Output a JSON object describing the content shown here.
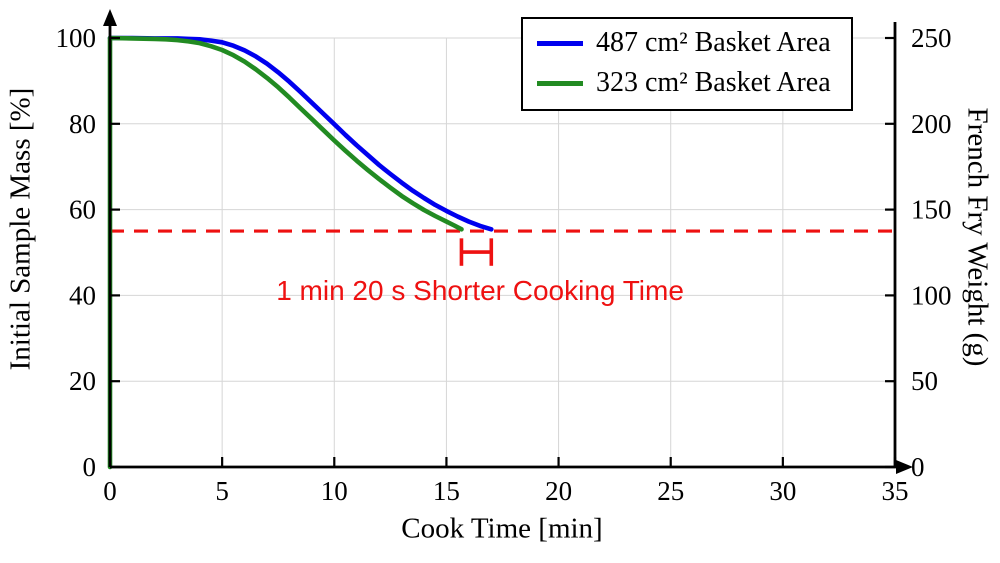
{
  "chart_data": {
    "type": "line",
    "title": "",
    "xlabel": "Cook Time [min]",
    "ylabel_left": "Initial Sample Mass [%]",
    "ylabel_right": "French Fry Weight (g)",
    "xlim": [
      0,
      35
    ],
    "ylim_left": [
      0,
      100
    ],
    "ylim_right": [
      0,
      250
    ],
    "x_ticks": [
      0,
      5,
      10,
      15,
      20,
      25,
      30,
      35
    ],
    "y_ticks_left": [
      0,
      20,
      40,
      60,
      80,
      100
    ],
    "y_ticks_right": [
      0,
      50,
      100,
      150,
      200,
      250
    ],
    "grid": true,
    "grid_color": "#d6d6d6",
    "legend_position": "top-right",
    "series": [
      {
        "name": "487 cm² Basket Area",
        "color": "#0000ee",
        "points": [
          [
            0,
            100
          ],
          [
            1,
            100
          ],
          [
            2,
            99.9
          ],
          [
            3,
            99.9
          ],
          [
            3.5,
            99.8
          ],
          [
            4,
            99.7
          ],
          [
            4.5,
            99.4
          ],
          [
            5,
            99
          ],
          [
            5.5,
            98.2
          ],
          [
            6,
            97.1
          ],
          [
            6.5,
            95.7
          ],
          [
            7,
            94
          ],
          [
            7.5,
            92
          ],
          [
            8,
            89.8
          ],
          [
            8.5,
            87.4
          ],
          [
            9,
            84.9
          ],
          [
            9.5,
            82.4
          ],
          [
            10,
            79.9
          ],
          [
            10.5,
            77.4
          ],
          [
            11,
            75
          ],
          [
            11.5,
            72.7
          ],
          [
            12,
            70.4
          ],
          [
            12.5,
            68.3
          ],
          [
            13,
            66.3
          ],
          [
            13.5,
            64.4
          ],
          [
            14,
            62.7
          ],
          [
            14.5,
            61.1
          ],
          [
            15,
            59.7
          ],
          [
            15.5,
            58.4
          ],
          [
            16,
            57.2
          ],
          [
            16.5,
            56.2
          ],
          [
            17,
            55.4
          ]
        ]
      },
      {
        "name": "323 cm² Basket Area",
        "color": "#228b22",
        "points": [
          [
            0,
            0
          ],
          [
            0,
            100
          ],
          [
            1,
            99.9
          ],
          [
            2,
            99.8
          ],
          [
            2.5,
            99.7
          ],
          [
            3,
            99.5
          ],
          [
            3.5,
            99.2
          ],
          [
            4,
            98.8
          ],
          [
            4.5,
            98.1
          ],
          [
            5,
            97.2
          ],
          [
            5.5,
            96
          ],
          [
            6,
            94.5
          ],
          [
            6.5,
            92.7
          ],
          [
            7,
            90.7
          ],
          [
            7.5,
            88.5
          ],
          [
            8,
            86.1
          ],
          [
            8.5,
            83.6
          ],
          [
            9,
            81.1
          ],
          [
            9.5,
            78.6
          ],
          [
            10,
            76.1
          ],
          [
            10.5,
            73.7
          ],
          [
            11,
            71.4
          ],
          [
            11.5,
            69.2
          ],
          [
            12,
            67.1
          ],
          [
            12.5,
            65.1
          ],
          [
            13,
            63.2
          ],
          [
            13.5,
            61.5
          ],
          [
            14,
            59.9
          ],
          [
            14.5,
            58.5
          ],
          [
            15,
            57.2
          ],
          [
            15.35,
            56.3
          ],
          [
            15.67,
            55.4
          ]
        ]
      }
    ],
    "reference_line": {
      "y": 55,
      "color": "#ee1111",
      "style": "dashed"
    },
    "bracket": {
      "x1": 15.67,
      "x2": 17.0,
      "y": 50.1,
      "cap_half": 3.2,
      "color": "#ee1111"
    },
    "annotation": {
      "text": "1 min 20 s Shorter Cooking Time",
      "x": 16.5,
      "y": 41,
      "color": "#ee1111"
    }
  }
}
